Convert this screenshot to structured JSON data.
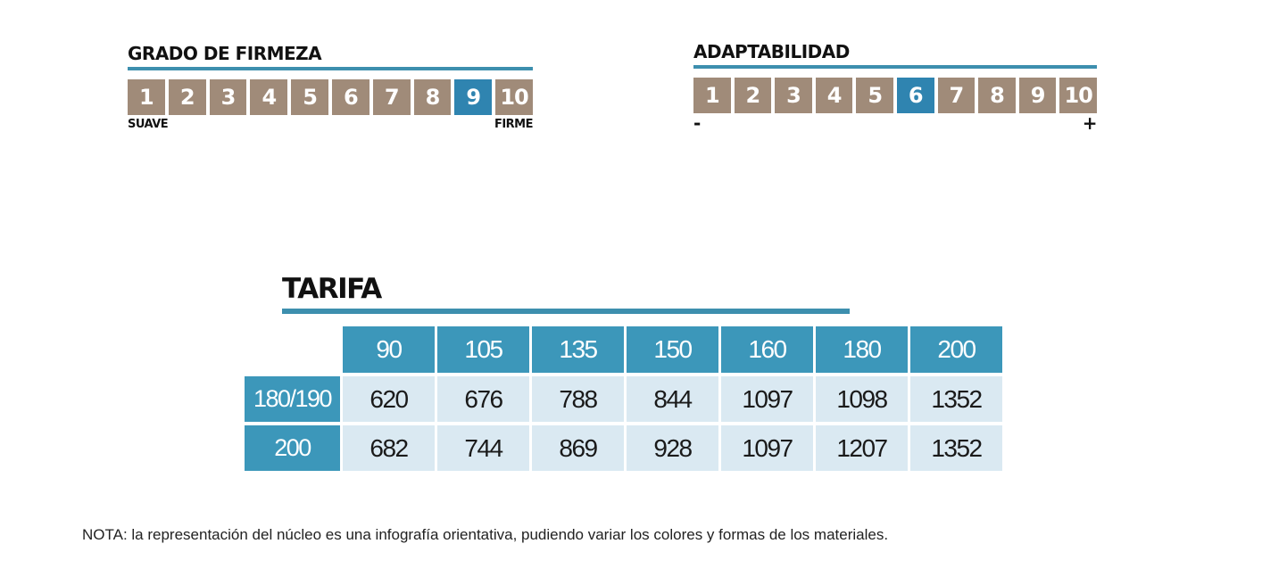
{
  "firmness": {
    "title": "GRADO DE FIRMEZA",
    "values": [
      "1",
      "2",
      "3",
      "4",
      "5",
      "6",
      "7",
      "8",
      "9",
      "10"
    ],
    "selected": 9,
    "min_label": "SUAVE",
    "max_label": "FIRME"
  },
  "adaptability": {
    "title": "ADAPTABILIDAD",
    "values": [
      "1",
      "2",
      "3",
      "4",
      "5",
      "6",
      "7",
      "8",
      "9",
      "10"
    ],
    "selected": 6,
    "min_label": "-",
    "max_label": "+"
  },
  "colors": {
    "scale_box": "#a08b79",
    "scale_active": "#2f84b0",
    "accent_rule": "#3d8fae",
    "table_header": "#3c97ba",
    "table_cell": "#dae9f2"
  },
  "chart_data": {
    "type": "table",
    "title": "TARIFA",
    "columns": [
      "90",
      "105",
      "135",
      "150",
      "160",
      "180",
      "200"
    ],
    "rows": [
      {
        "label": "180/190",
        "values": [
          "620",
          "676",
          "788",
          "844",
          "1097",
          "1098",
          "1352"
        ]
      },
      {
        "label": "200",
        "values": [
          "682",
          "744",
          "869",
          "928",
          "1097",
          "1207",
          "1352"
        ]
      }
    ]
  },
  "note": "NOTA: la representación del núcleo es una infografía orientativa, pudiendo variar los colores y formas de los materiales."
}
